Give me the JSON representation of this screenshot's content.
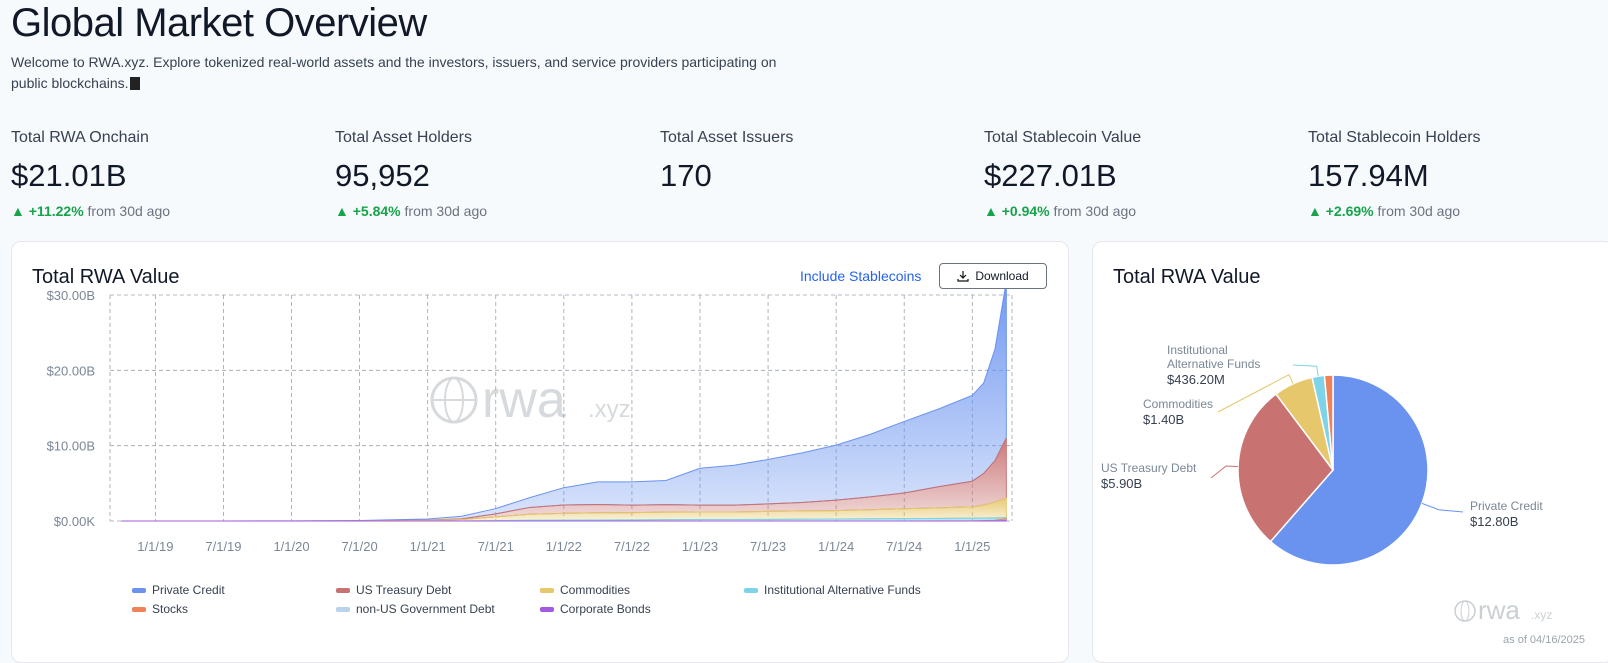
{
  "page": {
    "title": "Global Market Overview",
    "intro": "Welcome to RWA.xyz. Explore tokenized real-world assets and the investors, issuers, and service providers participating on public blockchains."
  },
  "stats": [
    {
      "label": "Total RWA Onchain",
      "value": "$21.01B",
      "change": "+11.22%",
      "change_suffix": "from 30d ago"
    },
    {
      "label": "Total Asset Holders",
      "value": "95,952",
      "change": "+5.84%",
      "change_suffix": "from 30d ago"
    },
    {
      "label": "Total Asset Issuers",
      "value": "170",
      "change": "",
      "change_suffix": ""
    },
    {
      "label": "Total Stablecoin Value",
      "value": "$227.01B",
      "change": "+0.94%",
      "change_suffix": "from 30d ago"
    },
    {
      "label": "Total Stablecoin Holders",
      "value": "157.94M",
      "change": "+2.69%",
      "change_suffix": "from 30d ago"
    }
  ],
  "area_card": {
    "title": "Total RWA Value",
    "toggle_label": "Include Stablecoins",
    "download_label": "Download",
    "watermark_main": "rwa",
    "watermark_suffix": ".xyz"
  },
  "pie_card": {
    "title": "Total RWA Value",
    "watermark_main": "rwa",
    "watermark_suffix": ".xyz",
    "as_of": "as of 04/16/2025"
  },
  "colors": {
    "private_credit": "#6a93f0",
    "us_treasury": "#c97272",
    "commodities": "#e6c76c",
    "institutional_alt": "#7ed3e8",
    "stocks": "#f0825a",
    "non_us_gov": "#b9d3ec",
    "corporate_bonds": "#a35ae0",
    "positive": "#16a34a"
  },
  "chart_data": [
    {
      "type": "area",
      "title": "Total RWA Value",
      "y_ticks": [
        "$30.00B",
        "$20.00B",
        "$10.00B",
        "$0.00K"
      ],
      "ylim": [
        0,
        30
      ],
      "x_ticks": [
        "1/1/19",
        "7/1/19",
        "1/1/20",
        "7/1/20",
        "1/1/21",
        "7/1/21",
        "1/1/22",
        "7/1/22",
        "1/1/23",
        "7/1/23",
        "1/1/24",
        "7/1/24",
        "1/1/25"
      ],
      "grid": true,
      "legend": "bottom",
      "x": [
        "2018-10",
        "2019-01",
        "2019-07",
        "2020-01",
        "2020-07",
        "2021-01",
        "2021-04",
        "2021-07",
        "2021-10",
        "2022-01",
        "2022-04",
        "2022-07",
        "2022-10",
        "2023-01",
        "2023-04",
        "2023-07",
        "2023-10",
        "2024-01",
        "2024-04",
        "2024-07",
        "2024-10",
        "2025-01",
        "2025-02",
        "2025-03",
        "2025-04"
      ],
      "series": [
        {
          "name": "Private Credit",
          "values": [
            0,
            0,
            0,
            0.02,
            0.05,
            0.15,
            0.35,
            0.7,
            1.3,
            2.3,
            3.0,
            3.1,
            3.2,
            4.9,
            5.3,
            5.9,
            6.6,
            7.3,
            8.3,
            9.5,
            10.3,
            11.4,
            12.0,
            14.8,
            20.8
          ]
        },
        {
          "name": "US Treasury Debt",
          "values": [
            0,
            0,
            0,
            0,
            0,
            0.03,
            0.08,
            0.4,
            0.9,
            1.1,
            1.1,
            1.0,
            1.0,
            0.9,
            0.9,
            1.0,
            1.1,
            1.4,
            1.7,
            2.1,
            2.8,
            3.4,
            4.2,
            5.5,
            8.0
          ]
        },
        {
          "name": "Commodities",
          "values": [
            0,
            0,
            0,
            0,
            0.02,
            0.08,
            0.2,
            0.5,
            0.8,
            0.9,
            0.95,
            0.95,
            1.0,
            1.0,
            1.0,
            1.05,
            1.1,
            1.1,
            1.2,
            1.3,
            1.4,
            1.5,
            1.7,
            2.1,
            2.6
          ]
        },
        {
          "name": "Institutional Alternative Funds",
          "values": [
            0,
            0,
            0,
            0,
            0,
            0,
            0,
            0.05,
            0.1,
            0.12,
            0.14,
            0.15,
            0.18,
            0.2,
            0.2,
            0.22,
            0.25,
            0.27,
            0.3,
            0.32,
            0.35,
            0.38,
            0.4,
            0.42,
            0.44
          ]
        },
        {
          "name": "Stocks",
          "values": [
            0,
            0,
            0,
            0,
            0,
            0,
            0,
            0,
            0,
            0,
            0,
            0,
            0,
            0,
            0,
            0,
            0,
            0,
            0,
            0,
            0.01,
            0.02,
            0.05,
            0.1,
            0.3
          ]
        },
        {
          "name": "non-US Government Debt",
          "values": [
            0,
            0,
            0,
            0,
            0,
            0,
            0,
            0,
            0,
            0,
            0,
            0,
            0,
            0,
            0,
            0,
            0,
            0,
            0,
            0,
            0,
            0,
            0.02,
            0.05,
            0.1
          ]
        },
        {
          "name": "Corporate Bonds",
          "values": [
            0,
            0,
            0,
            0,
            0,
            0,
            0,
            0,
            0,
            0,
            0,
            0,
            0,
            0,
            0,
            0,
            0,
            0,
            0,
            0,
            0,
            0,
            0.01,
            0.03,
            0.05
          ]
        }
      ]
    },
    {
      "type": "pie",
      "title": "Total RWA Value",
      "slices": [
        {
          "name": "Private Credit",
          "label_value": "$12.80B",
          "value": 12.8
        },
        {
          "name": "US Treasury Debt",
          "label_value": "$5.90B",
          "value": 5.9
        },
        {
          "name": "Commodities",
          "label_value": "$1.40B",
          "value": 1.4
        },
        {
          "name": "Institutional Alternative Funds",
          "label_value": "$436.20M",
          "value": 0.4362
        },
        {
          "name": "Stocks",
          "label_value": "",
          "value": 0.3
        }
      ],
      "callout_labels": [
        {
          "name": "Institutional",
          "name2": "Alternative Funds",
          "value": "$436.20M"
        },
        {
          "name": "Commodities",
          "value": "$1.40B"
        },
        {
          "name": "US Treasury Debt",
          "value": "$5.90B"
        },
        {
          "name": "Private Credit",
          "value": "$12.80B"
        }
      ]
    }
  ]
}
